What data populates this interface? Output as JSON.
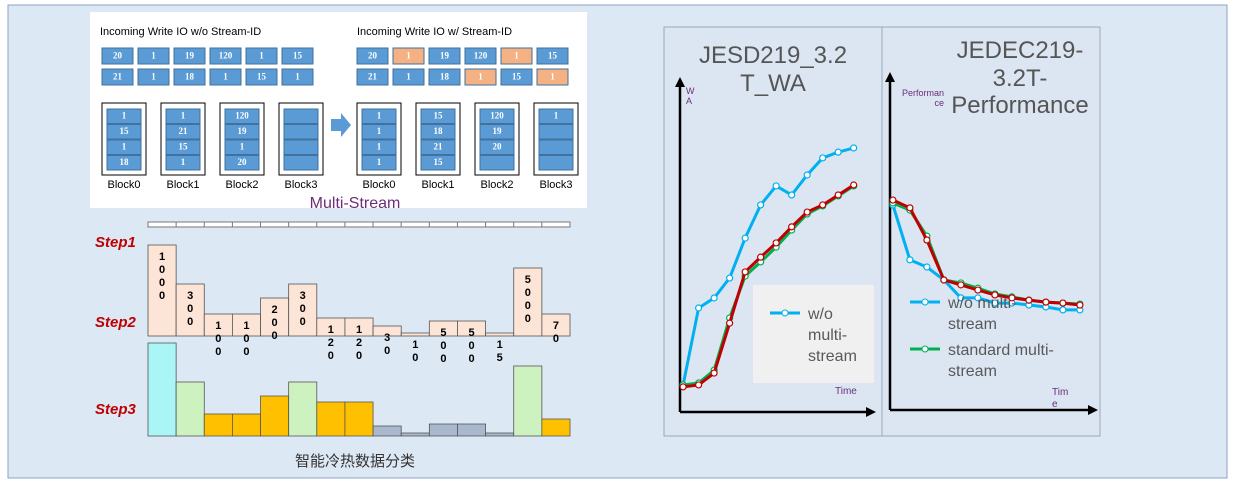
{
  "left_panel": {
    "title_without": "Incoming Write IO w/o Stream-ID",
    "title_with": "Incoming Write IO w/ Stream-ID",
    "io_without": [
      [
        "20",
        "1",
        "19",
        "120",
        "1",
        "15"
      ],
      [
        "21",
        "1",
        "18",
        "1",
        "15",
        "1"
      ]
    ],
    "io_with": [
      [
        "20",
        "1",
        "19",
        "120",
        "1",
        "15"
      ],
      [
        "21",
        "1",
        "18",
        "1",
        "15",
        "1"
      ]
    ],
    "io_with_colors": [
      [
        "#5b9bd5",
        "#f4b183",
        "#5b9bd5",
        "#5b9bd5",
        "#f4b183",
        "#5b9bd5"
      ],
      [
        "#5b9bd5",
        "#5b9bd5",
        "#5b9bd5",
        "#f4b183",
        "#5b9bd5",
        "#f4b183"
      ]
    ],
    "blocks_without": [
      {
        "label": "Block0",
        "cells": [
          "1",
          "15",
          "1",
          "18"
        ]
      },
      {
        "label": "Block1",
        "cells": [
          "1",
          "21",
          "15",
          "1"
        ]
      },
      {
        "label": "Block2",
        "cells": [
          "120",
          "19",
          "1",
          "20"
        ]
      },
      {
        "label": "Block3",
        "cells": [
          null,
          null,
          null,
          null
        ]
      }
    ],
    "blocks_with": [
      {
        "label": "Block0",
        "cells": [
          "1",
          "1",
          "1",
          "1"
        ]
      },
      {
        "label": "Block1",
        "cells": [
          "15",
          "18",
          "21",
          "15"
        ]
      },
      {
        "label": "Block2",
        "cells": [
          "120",
          "19",
          "20",
          null
        ]
      },
      {
        "label": "Block3",
        "cells": [
          "1",
          null,
          null,
          null
        ]
      }
    ],
    "caption": "Multi-Stream"
  },
  "steps": {
    "labels": [
      "Step1",
      "Step2",
      "Step3"
    ],
    "caption": "智能冷热数据分类"
  },
  "chart_data": [
    {
      "type": "bar",
      "categories": [
        "1000",
        "300",
        "100",
        "100",
        "200",
        "300",
        "120",
        "120",
        "30",
        "10",
        "500",
        "500",
        "15",
        "5000",
        "70"
      ],
      "values": [
        91,
        52,
        22,
        22,
        38,
        52,
        18,
        18,
        10,
        3,
        15,
        15,
        3,
        68,
        22
      ],
      "ylim": [
        0,
        100
      ],
      "color": "#fce4d6"
    },
    {
      "type": "bar",
      "values": [
        93,
        54,
        22,
        22,
        40,
        54,
        34,
        34,
        10,
        3,
        12,
        12,
        3,
        70,
        17
      ],
      "ylim": [
        0,
        100
      ],
      "colors": [
        "#aaf5f5",
        "#cdf2c0",
        "#ffc000",
        "#ffc000",
        "#ffc000",
        "#cdf2c0",
        "#ffc000",
        "#ffc000",
        "#a9b8cc",
        "#a9b8cc",
        "#a9b8cc",
        "#a9b8cc",
        "#a9b8cc",
        "#cdf2c0",
        "#ffc000"
      ]
    },
    {
      "type": "line",
      "title": "JESD219_3.2 T_WA",
      "y_label": "WA",
      "x_label": "Time",
      "x": [
        1,
        2,
        3,
        4,
        5,
        6,
        7,
        8,
        9,
        10,
        11,
        12
      ],
      "xlim": [
        0.8,
        12.6
      ],
      "ylim": [
        0,
        100
      ],
      "series": [
        {
          "name": "w/o multi-stream",
          "color": "#00b0f0",
          "values": [
            8.4,
            32.3,
            35.4,
            41.6,
            54.0,
            64.3,
            70.2,
            67.4,
            73.6,
            78.9,
            80.7,
            82.0
          ]
        },
        {
          "color": "#00b050",
          "values": [
            8.4,
            9.0,
            13.0,
            29.2,
            42.2,
            46.6,
            51.2,
            56.5,
            61.5,
            64.0,
            67.1,
            70.2
          ]
        },
        {
          "color": "#c00000",
          "values": [
            7.8,
            8.4,
            12.1,
            27.6,
            43.5,
            48.1,
            52.5,
            57.5,
            62.1,
            64.3,
            67.4,
            70.5
          ]
        }
      ]
    },
    {
      "type": "line",
      "title": "JEDEC219-3.2T-Performance",
      "y_label": "Performance",
      "x_label": "Time",
      "x": [
        1,
        2,
        3,
        4,
        5,
        6,
        7,
        8,
        9,
        10,
        11,
        12
      ],
      "xlim": [
        0.83,
        12.3
      ],
      "ylim": [
        0,
        100
      ],
      "series": [
        {
          "name": "w/o multi-stream",
          "color": "#00b0f0",
          "values": [
            63.1,
            46.2,
            44.0,
            40.0,
            34.5,
            34.5,
            32.9,
            32.9,
            32.3,
            31.7,
            30.8,
            30.8
          ]
        },
        {
          "name": "standard multi-stream",
          "color": "#00b050",
          "values": [
            63.7,
            61.5,
            53.5,
            40.0,
            39.1,
            37.5,
            35.7,
            34.8,
            33.8,
            33.2,
            32.9,
            32.6
          ]
        },
        {
          "color": "#c00000",
          "values": [
            64.6,
            62.2,
            52.3,
            40.0,
            38.5,
            36.9,
            35.4,
            34.5,
            33.8,
            33.2,
            32.9,
            32.3
          ]
        }
      ]
    }
  ]
}
